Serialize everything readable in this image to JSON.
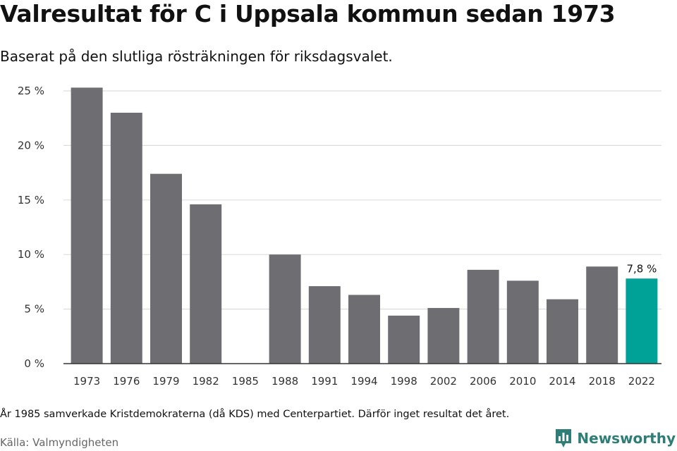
{
  "title": "Valresultat för C i Uppsala kommun sedan 1973",
  "subtitle": "Baserat på den slutliga rösträkningen för riksdagsvalet.",
  "note": "År 1985 samverkade Kristdemokraterna (då KDS) med Centerpartiet. Därför inget resultat det året.",
  "source": "Källa: Valmyndigheten",
  "brand": "Newsworthy",
  "colors": {
    "bar": "#6e6d72",
    "highlight": "#00a297",
    "grid": "#dddddd",
    "axis": "#333333",
    "brand": "#2e7d76"
  },
  "chart_data": {
    "type": "bar",
    "categories": [
      "1973",
      "1976",
      "1979",
      "1982",
      "1985",
      "1988",
      "1991",
      "1994",
      "1998",
      "2002",
      "2006",
      "2010",
      "2014",
      "2018",
      "2022"
    ],
    "values": [
      25.3,
      23.0,
      17.4,
      14.6,
      null,
      10.0,
      7.1,
      6.3,
      4.4,
      5.1,
      8.6,
      7.6,
      5.9,
      8.9,
      7.8
    ],
    "highlight_index": 14,
    "data_label": "7,8 %",
    "ylim": [
      0,
      25
    ],
    "yticks": [
      0,
      5,
      10,
      15,
      20,
      25
    ],
    "ytick_labels": [
      "0 %",
      "5 %",
      "10 %",
      "15 %",
      "20 %",
      "25 %"
    ],
    "grid": true,
    "xlabel": "",
    "ylabel": ""
  }
}
